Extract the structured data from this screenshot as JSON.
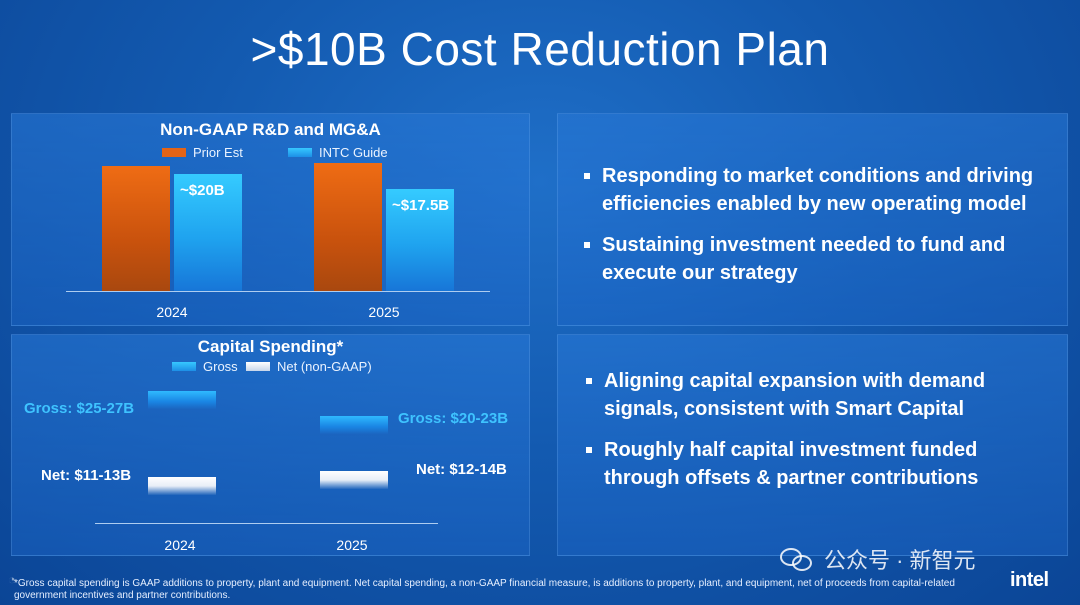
{
  "slide_title": ">$10B Cost Reduction Plan",
  "chart_data": [
    {
      "type": "bar",
      "title": "Non-GAAP R&D and MG&A",
      "categories": [
        "2024",
        "2025"
      ],
      "series": [
        {
          "name": "Prior Est",
          "values": [
            21.5,
            22
          ],
          "color": "#e46416"
        },
        {
          "name": "INTC Guide",
          "values": [
            20,
            17.5
          ],
          "color": "#29b6f6"
        }
      ],
      "data_labels": [
        "",
        "",
        "~$20B",
        "~$17.5B"
      ],
      "ylim": [
        0,
        24
      ],
      "legend_position": "top-center",
      "grid": false
    },
    {
      "type": "bar",
      "title": "Capital Spending*",
      "categories": [
        "2024",
        "2025"
      ],
      "series": [
        {
          "name": "Gross",
          "ranges": [
            [
              25,
              27
            ],
            [
              20,
              23
            ]
          ],
          "labels": [
            "Gross: $25-27B",
            "Gross: $20-23B"
          ],
          "color": "#2fbaff"
        },
        {
          "name": "Net (non-GAAP)",
          "ranges": [
            [
              11,
              13
            ],
            [
              12,
              14
            ]
          ],
          "labels": [
            "Net: $11-13B",
            "Net: $12-14B"
          ],
          "color": "#ffffff"
        }
      ],
      "legend_position": "top-center",
      "grid": false
    }
  ],
  "bullets_top": [
    "Responding to market conditions and driving efficiencies enabled by new operating model",
    "Sustaining investment needed to fund and execute our strategy"
  ],
  "bullets_bottom": [
    "Aligning capital expansion with demand signals, consistent with Smart Capital",
    "Roughly half capital investment funded through offsets & partner contributions"
  ],
  "footnote": "*Gross capital spending is GAAP additions to property, plant and equipment. Net capital spending, a non-GAAP financial measure, is additions to property, plant, and equipment, net of proceeds from capital-related government incentives and partner contributions.",
  "watermark": "公众号 · 新智元",
  "logo": "intel"
}
